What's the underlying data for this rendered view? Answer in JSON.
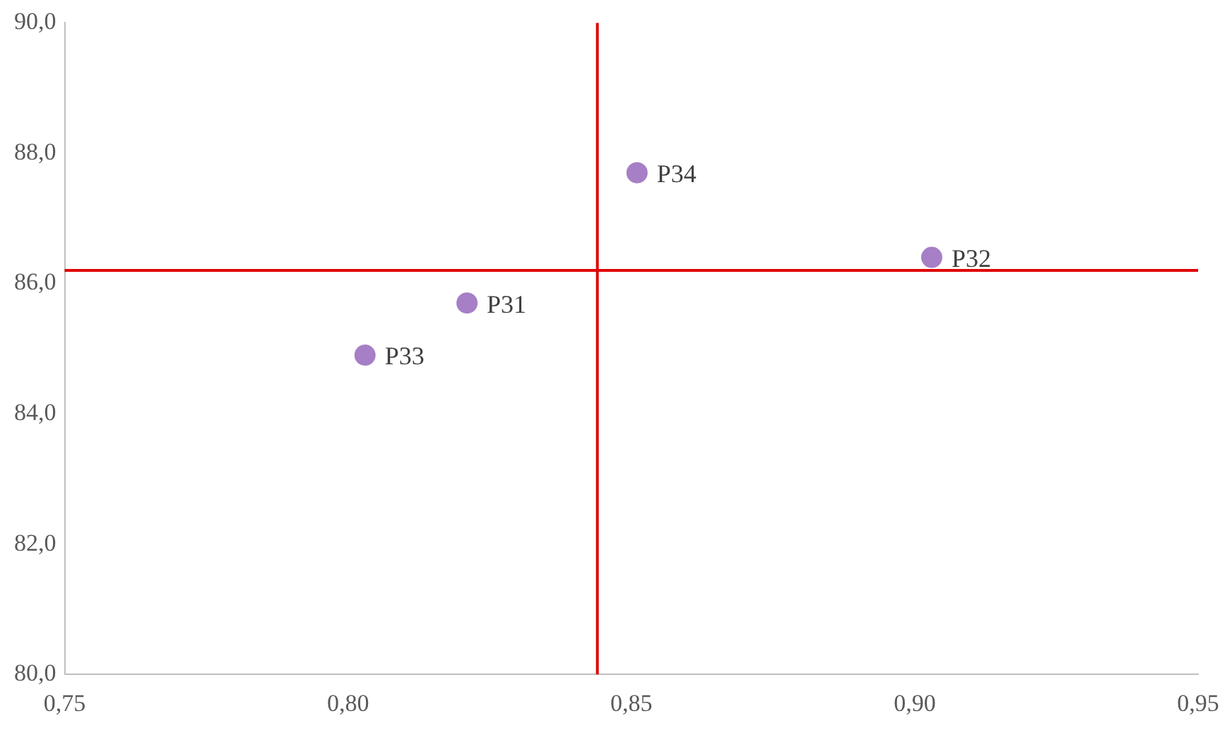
{
  "chart_data": {
    "type": "scatter",
    "marker": "circle",
    "grid": false,
    "legend": false,
    "x": [
      0.821,
      0.903,
      0.803,
      0.851
    ],
    "series": [
      {
        "color": "#a67fc6",
        "values": [
          85.7,
          86.4,
          84.9,
          87.7
        ]
      }
    ],
    "xlim": [
      0.75,
      0.95
    ],
    "xticks": [
      {
        "value": 0.75,
        "label": "0,75"
      },
      {
        "value": 0.8,
        "label": "0,80"
      },
      {
        "value": 0.85,
        "label": "0,85"
      },
      {
        "value": 0.9,
        "label": "0,90"
      },
      {
        "value": 0.95,
        "label": "0,95"
      }
    ],
    "ylim": [
      80,
      90
    ],
    "yticks": [
      {
        "value": 80,
        "label": "80,0"
      },
      {
        "value": 82,
        "label": "82,0"
      },
      {
        "value": 84,
        "label": "84,0"
      },
      {
        "value": 86,
        "label": "86,0"
      },
      {
        "value": 88,
        "label": "88,0"
      },
      {
        "value": 90,
        "label": "90,0"
      }
    ],
    "ref_lines": [
      {
        "axis": "x",
        "value": 0.844,
        "color": "#e00000"
      },
      {
        "axis": "y",
        "value": 86.2,
        "color": "#e00000"
      }
    ],
    "annotations": [
      {
        "text": "P31",
        "x": 0.821,
        "y": 85.7
      },
      {
        "text": "P32",
        "x": 0.903,
        "y": 86.4
      },
      {
        "text": "P33",
        "x": 0.803,
        "y": 84.9
      },
      {
        "text": "P34",
        "x": 0.851,
        "y": 87.7
      }
    ]
  }
}
